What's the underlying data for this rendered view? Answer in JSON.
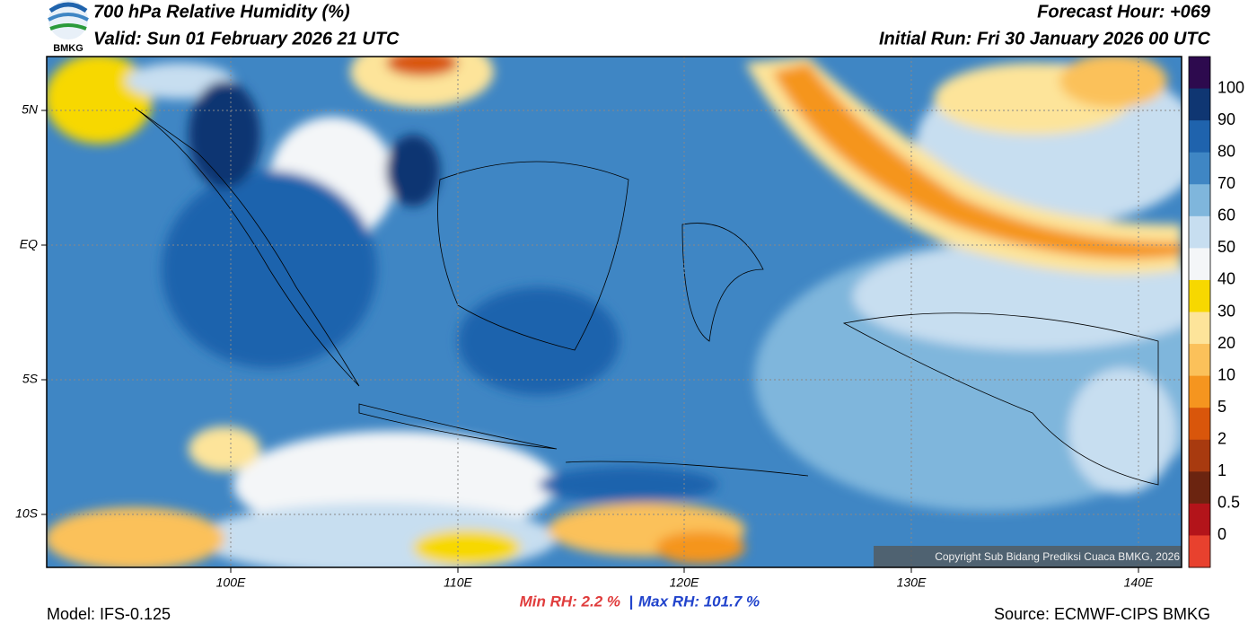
{
  "header": {
    "title": "700 hPa Relative Humidity (%)",
    "valid": "Valid: Sun 01 February 2026 21 UTC",
    "forecast_hour": "Forecast Hour: +069",
    "initial_run": "Initial Run: Fri 30 January 2026 00 UTC",
    "logo_text": "BMKG"
  },
  "map": {
    "lat_labels": [
      "5N",
      "EQ",
      "5S",
      "10S"
    ],
    "lon_labels": [
      "100E",
      "110E",
      "120E",
      "130E",
      "140E"
    ],
    "copyright": "Copyright Sub Bidang Prediksi Cuaca BMKG, 2026"
  },
  "colorbar": {
    "labels": [
      "100",
      "90",
      "80",
      "70",
      "60",
      "50",
      "40",
      "30",
      "20",
      "10",
      "5",
      "2",
      "1",
      "0.5",
      "0"
    ],
    "colors": [
      "#2d0a4e",
      "#0f3672",
      "#1f63ad",
      "#3f86c4",
      "#7fb6dc",
      "#c7def0",
      "#f4f6f8",
      "#f7d800",
      "#fde49a",
      "#fbc15a",
      "#f5951f",
      "#d9560b",
      "#a83a0f",
      "#6b2410",
      "#b3141a",
      "#e8412e"
    ]
  },
  "footer": {
    "model": "Model: IFS-0.125",
    "min_rh": "Min RH:   2.2 %",
    "separator": "|",
    "max_rh": "Max RH: 101.7 %",
    "source": "Source: ECMWF-CIPS BMKG"
  }
}
